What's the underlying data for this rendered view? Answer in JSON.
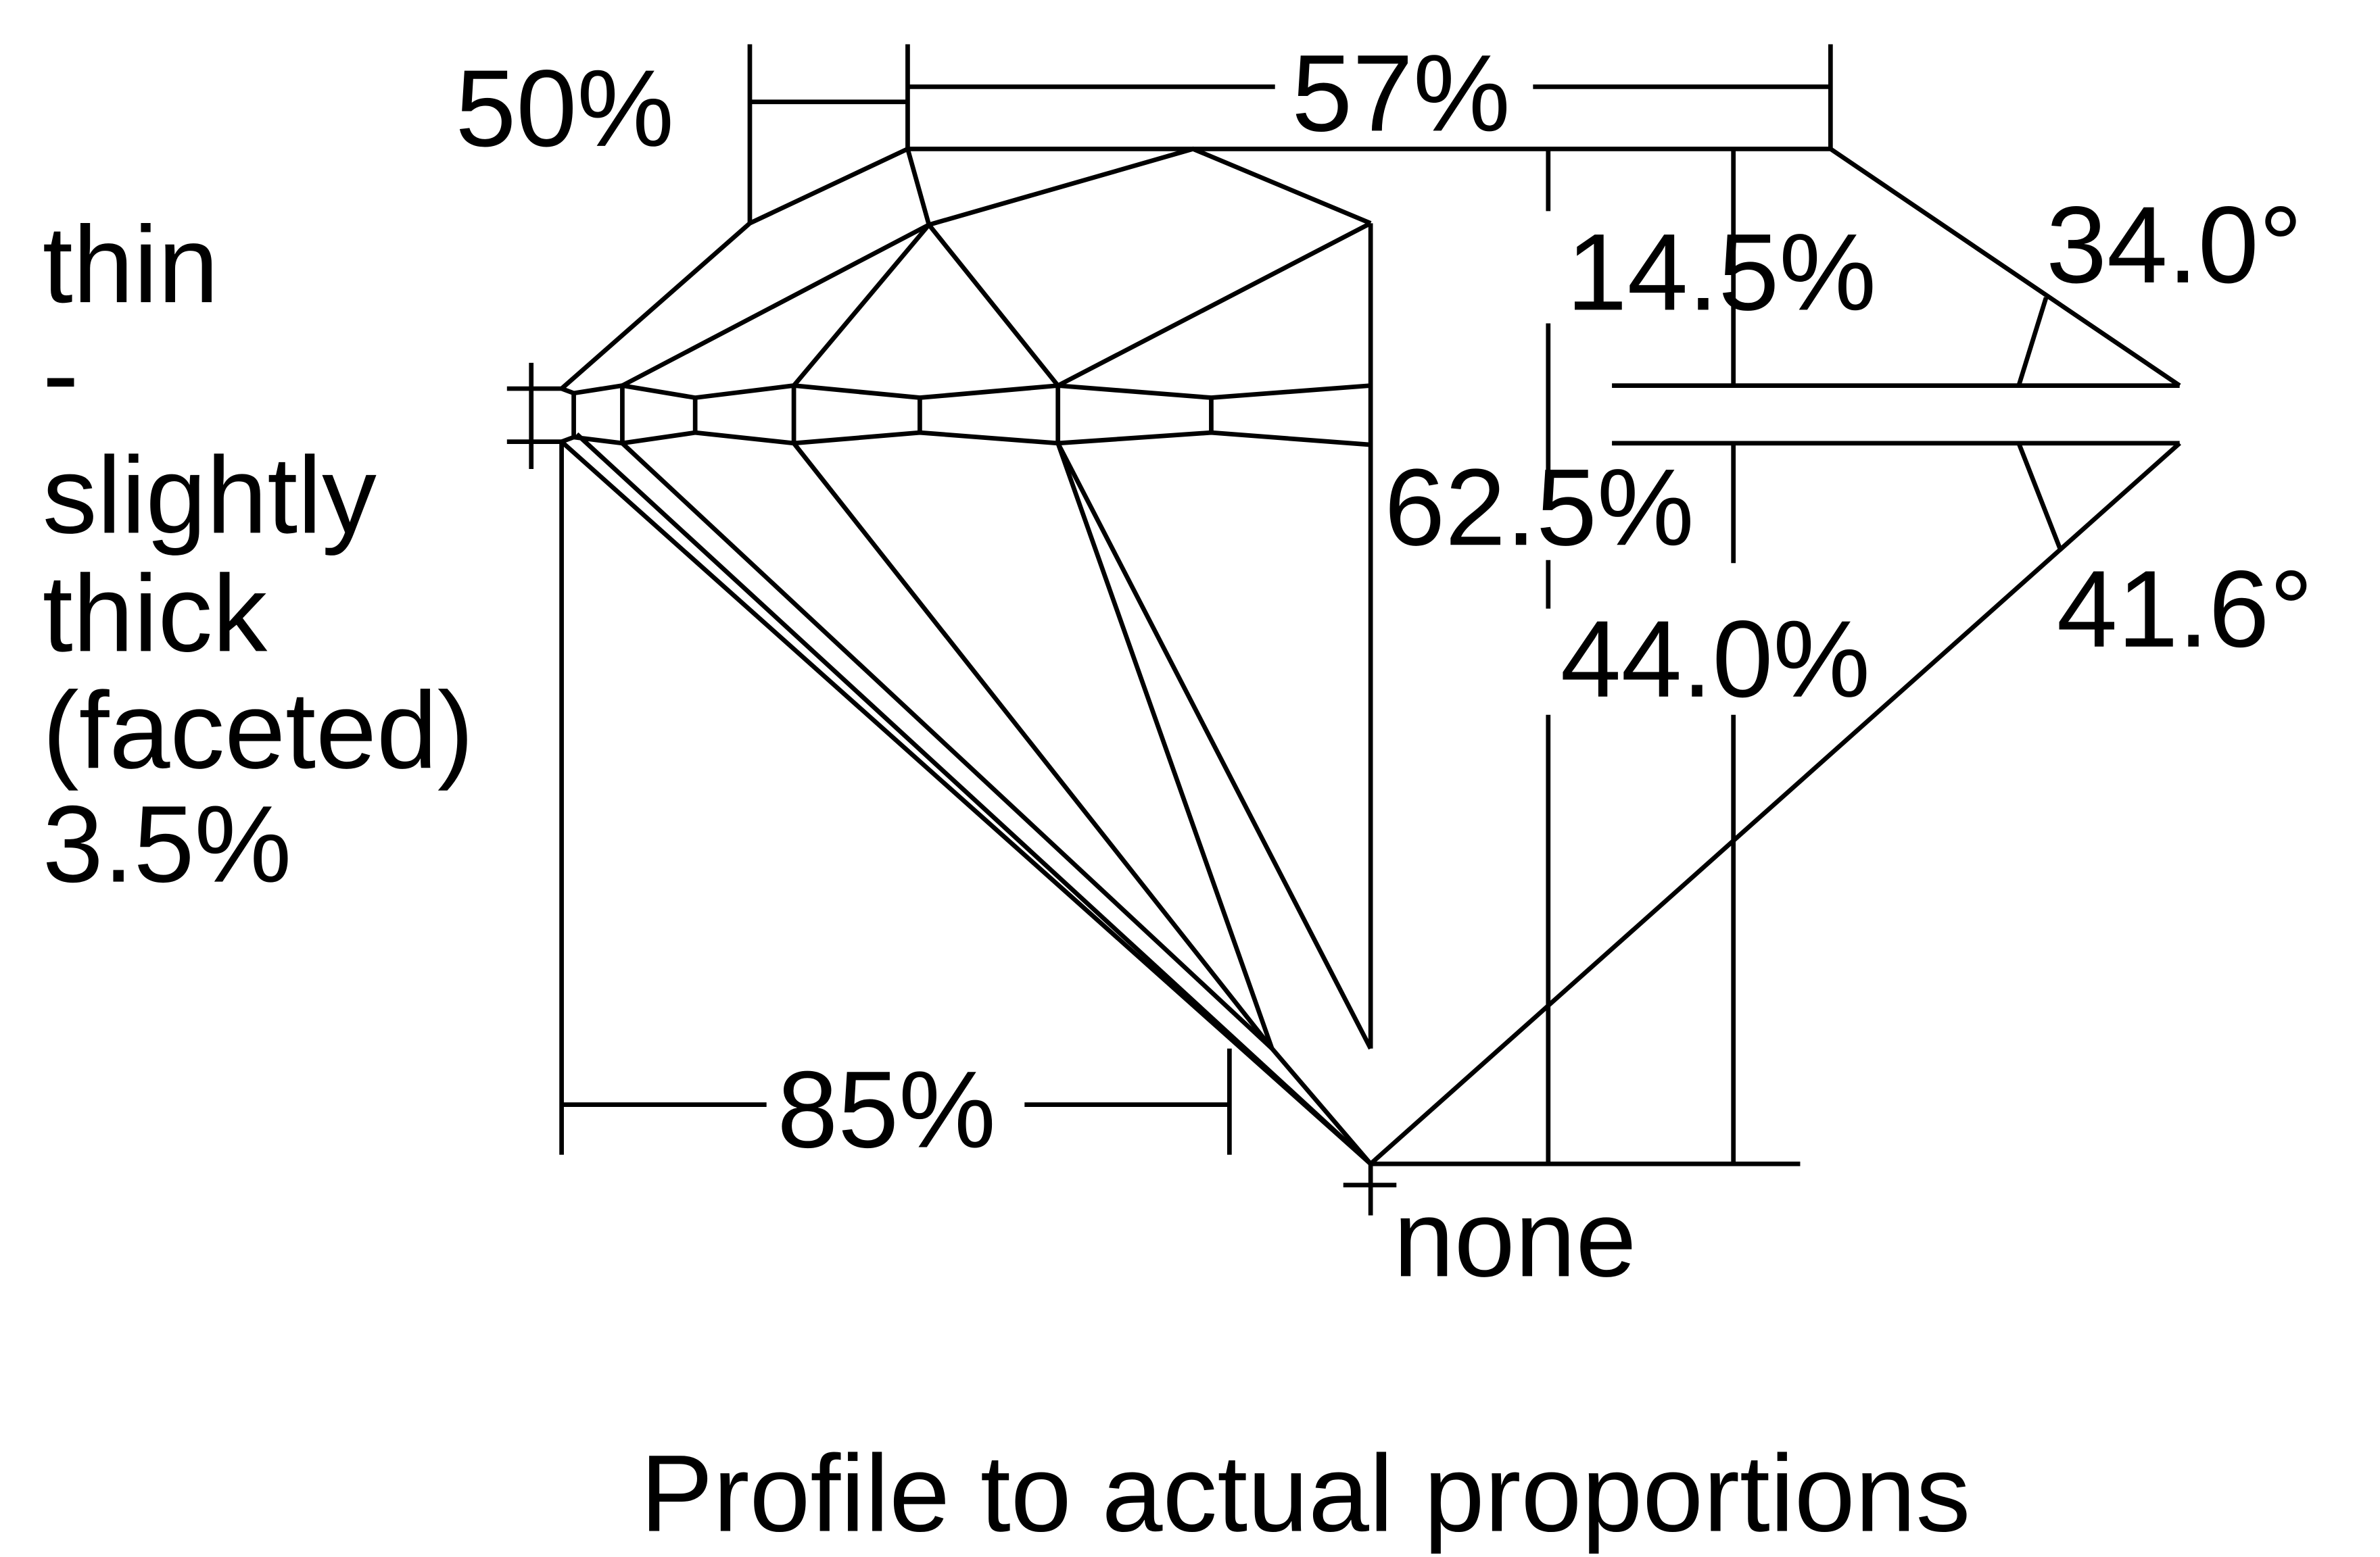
{
  "measurements": {
    "star_length": "50%",
    "table": "57%",
    "crown_height": "14.5%",
    "crown_angle": "34.0°",
    "total_depth": "62.5%",
    "pavilion_depth": "44.0%",
    "pavilion_angle": "41.6°",
    "lower_half_length": "85%",
    "culet": "none",
    "girdle": [
      "thin",
      "-",
      "slightly",
      "thick",
      "(faceted)",
      "3.5%"
    ]
  },
  "caption": "Profile to actual proportions"
}
